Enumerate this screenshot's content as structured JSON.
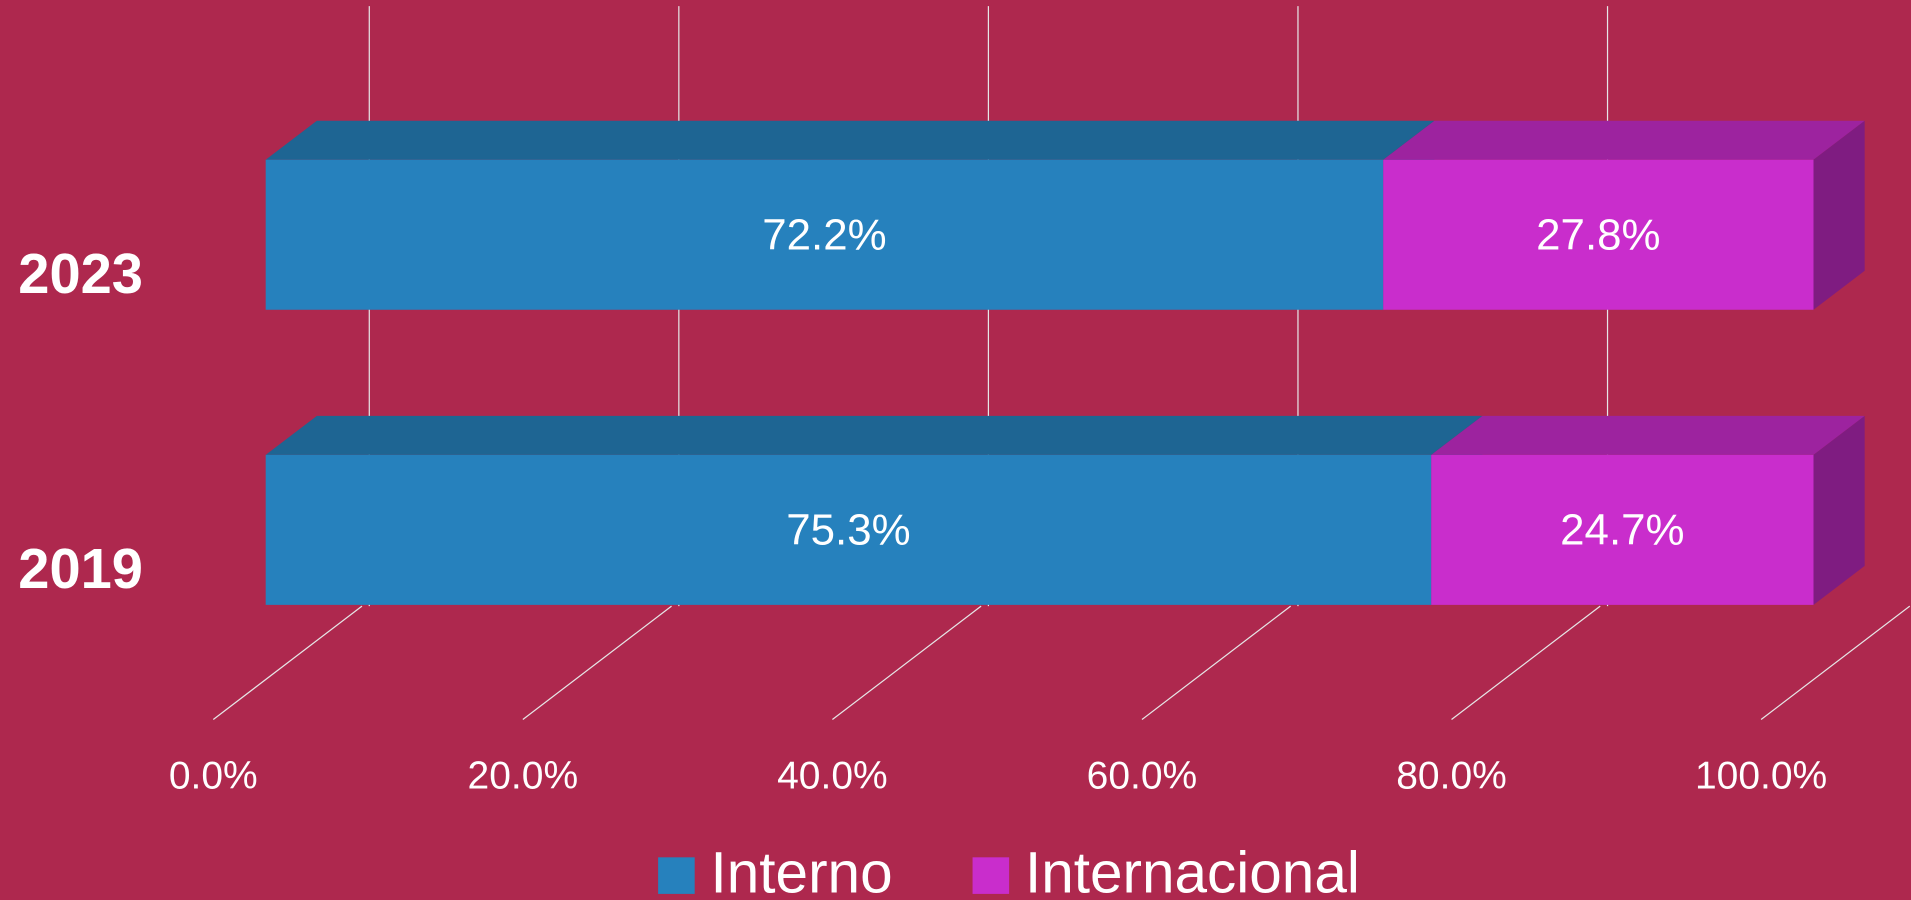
{
  "chart_data": {
    "type": "bar3d_stacked_horizontal",
    "categories": [
      "2023",
      "2019"
    ],
    "series": [
      {
        "name": "Interno",
        "color": "#2681bd",
        "values": [
          72.2,
          75.3
        ],
        "value_labels": [
          "72.2%",
          "75.3%"
        ]
      },
      {
        "name": "Internacional",
        "color": "#c92dcc",
        "values": [
          27.8,
          24.7
        ],
        "value_labels": [
          "27.8%",
          "24.7%"
        ]
      }
    ],
    "xlim": [
      0,
      100
    ],
    "xticks": [
      {
        "value": 0,
        "label": "0.0%"
      },
      {
        "value": 20,
        "label": "20.0%"
      },
      {
        "value": 40,
        "label": "40.0%"
      },
      {
        "value": 60,
        "label": "60.0%"
      },
      {
        "value": 80,
        "label": "80.0%"
      },
      {
        "value": 100,
        "label": "100.0%"
      }
    ],
    "grid": true,
    "legend": "bottom"
  }
}
